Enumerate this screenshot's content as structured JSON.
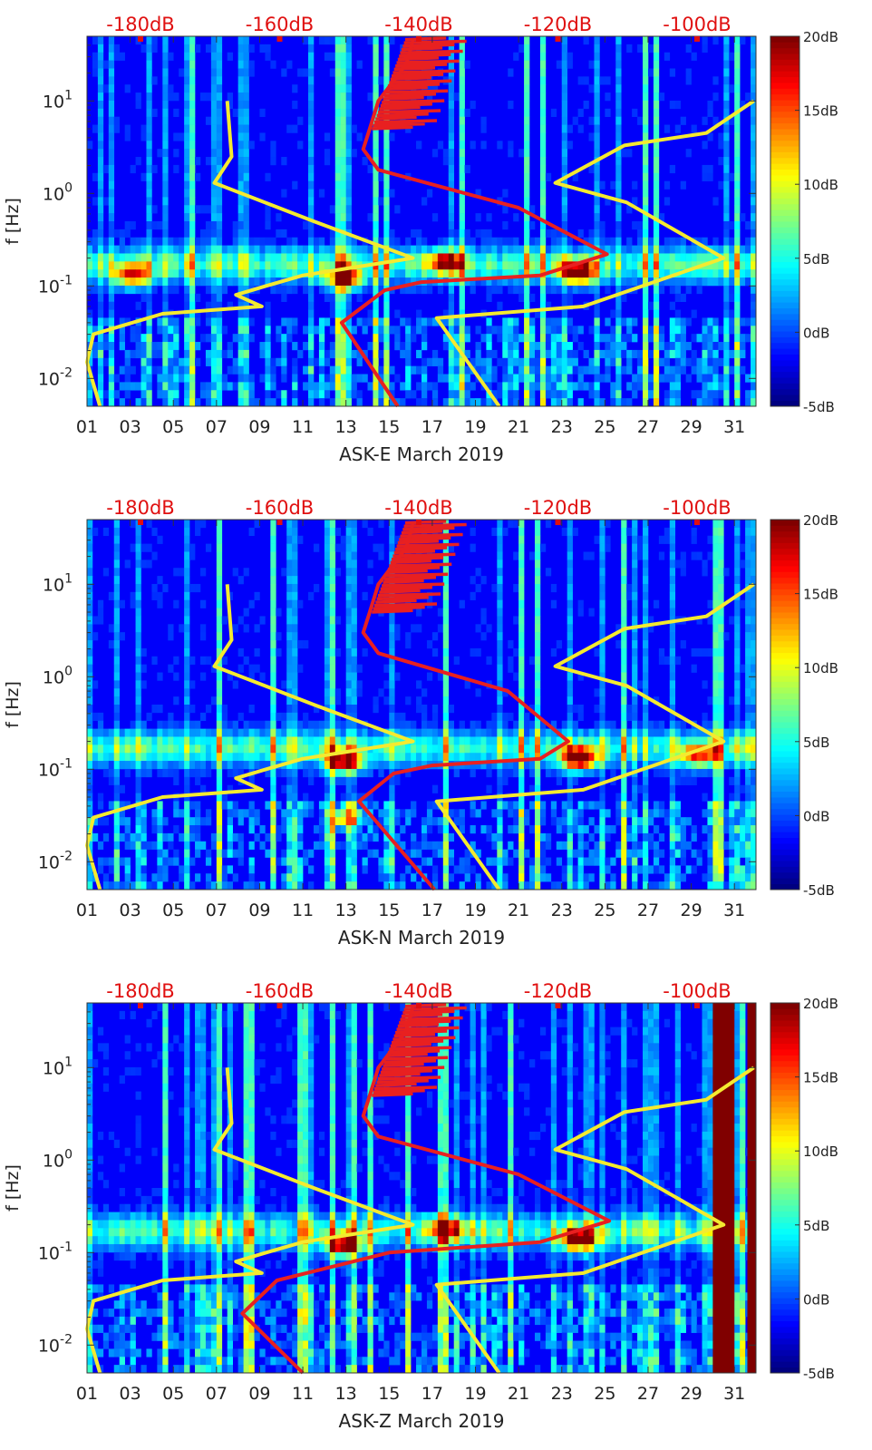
{
  "chart_data": [
    {
      "type": "heatmap",
      "title": "",
      "xlabel": "ASK-E March 2019",
      "ylabel": "f [Hz]",
      "x_ticks": [
        "01",
        "03",
        "05",
        "07",
        "09",
        "11",
        "13",
        "15",
        "17",
        "19",
        "21",
        "23",
        "25",
        "27",
        "29",
        "31"
      ],
      "y_ticks": [
        {
          "label": "10",
          "exp": "1"
        },
        {
          "label": "10",
          "exp": "0"
        },
        {
          "label": "10",
          "exp": "-1"
        },
        {
          "label": "10",
          "exp": "-2"
        }
      ],
      "top_ticks": [
        "-180dB",
        "-160dB",
        "-140dB",
        "-120dB",
        "-100dB"
      ],
      "colorbar_ticks": [
        "20dB",
        "15dB",
        "10dB",
        "5dB",
        "0dB",
        "-5dB"
      ],
      "xlim": [
        1,
        32
      ],
      "ylim_hz": [
        0.005,
        50
      ],
      "clim_db": [
        -5,
        20
      ],
      "grid": false,
      "hotspots": [
        {
          "day": 23.8,
          "f": 0.14,
          "level_db": 19
        },
        {
          "day": 12.9,
          "f": 0.12,
          "level_db": 17
        },
        {
          "day": 3.1,
          "f": 0.13,
          "level_db": 14
        },
        {
          "day": 17.6,
          "f": 0.18,
          "level_db": 15
        }
      ],
      "series": [
        {
          "name": "yellow model curve left",
          "color": "#f4ea30",
          "points": [
            [
              7.5,
              10
            ],
            [
              7.7,
              2.5
            ],
            [
              6.9,
              1.3
            ],
            [
              11.5,
              0.5
            ],
            [
              16.1,
              0.2
            ],
            [
              11.0,
              0.13
            ],
            [
              9.3,
              0.1
            ],
            [
              7.9,
              0.08
            ],
            [
              9.1,
              0.06
            ],
            [
              4.5,
              0.05
            ],
            [
              1.3,
              0.03
            ],
            [
              1.0,
              0.015
            ],
            [
              1.6,
              0.005
            ]
          ]
        },
        {
          "name": "yellow model curve right",
          "color": "#f4ea30",
          "points": [
            [
              20.1,
              0.005
            ],
            [
              17.2,
              0.045
            ],
            [
              24.0,
              0.06
            ],
            [
              30.5,
              0.2
            ],
            [
              26.0,
              0.8
            ],
            [
              22.7,
              1.3
            ],
            [
              25.9,
              3.3
            ],
            [
              29.7,
              4.5
            ],
            [
              31.9,
              10
            ]
          ]
        },
        {
          "name": "red noise-level curve",
          "color": "#e82020",
          "points": [
            [
              15.4,
              0.005
            ],
            [
              12.8,
              0.04
            ],
            [
              14.8,
              0.09
            ],
            [
              16.5,
              0.11
            ],
            [
              22.0,
              0.13
            ],
            [
              25.1,
              0.22
            ],
            [
              21.0,
              0.7
            ],
            [
              14.5,
              1.8
            ],
            [
              13.8,
              3.0
            ],
            [
              14.1,
              5
            ],
            [
              14.5,
              10
            ],
            [
              15.8,
              25
            ],
            [
              16.1,
              45
            ]
          ]
        }
      ]
    },
    {
      "type": "heatmap",
      "title": "",
      "xlabel": "ASK-N March 2019",
      "ylabel": "f [Hz]",
      "x_ticks": [
        "01",
        "03",
        "05",
        "07",
        "09",
        "11",
        "13",
        "15",
        "17",
        "19",
        "21",
        "23",
        "25",
        "27",
        "29",
        "31"
      ],
      "y_ticks": [
        {
          "label": "10",
          "exp": "1"
        },
        {
          "label": "10",
          "exp": "0"
        },
        {
          "label": "10",
          "exp": "-1"
        },
        {
          "label": "10",
          "exp": "-2"
        }
      ],
      "top_ticks": [
        "-180dB",
        "-160dB",
        "-140dB",
        "-120dB",
        "-100dB"
      ],
      "colorbar_ticks": [
        "20dB",
        "15dB",
        "10dB",
        "5dB",
        "0dB",
        "-5dB"
      ],
      "xlim": [
        1,
        32
      ],
      "ylim_hz": [
        0.005,
        50
      ],
      "clim_db": [
        -5,
        20
      ],
      "grid": false,
      "hotspots": [
        {
          "day": 23.8,
          "f": 0.13,
          "level_db": 19
        },
        {
          "day": 12.9,
          "f": 0.12,
          "level_db": 17
        },
        {
          "day": 13.0,
          "f": 0.03,
          "level_db": 12
        },
        {
          "day": 29.3,
          "f": 0.14,
          "level_db": 12
        }
      ],
      "series": [
        {
          "name": "yellow model curve left",
          "color": "#f4ea30",
          "points": [
            [
              7.5,
              10
            ],
            [
              7.7,
              2.5
            ],
            [
              6.9,
              1.3
            ],
            [
              11.5,
              0.5
            ],
            [
              16.1,
              0.2
            ],
            [
              11.0,
              0.13
            ],
            [
              9.3,
              0.1
            ],
            [
              7.9,
              0.08
            ],
            [
              9.1,
              0.06
            ],
            [
              4.5,
              0.05
            ],
            [
              1.3,
              0.03
            ],
            [
              1.0,
              0.015
            ],
            [
              1.6,
              0.005
            ]
          ]
        },
        {
          "name": "yellow model curve right",
          "color": "#f4ea30",
          "points": [
            [
              20.1,
              0.005
            ],
            [
              17.2,
              0.045
            ],
            [
              24.0,
              0.06
            ],
            [
              30.5,
              0.2
            ],
            [
              26.0,
              0.8
            ],
            [
              22.7,
              1.3
            ],
            [
              25.9,
              3.3
            ],
            [
              29.7,
              4.5
            ],
            [
              31.9,
              10
            ]
          ]
        },
        {
          "name": "red noise-level curve",
          "color": "#e82020",
          "points": [
            [
              17.1,
              0.005
            ],
            [
              13.6,
              0.045
            ],
            [
              15.2,
              0.09
            ],
            [
              17.0,
              0.11
            ],
            [
              22.0,
              0.13
            ],
            [
              23.3,
              0.2
            ],
            [
              20.5,
              0.7
            ],
            [
              14.5,
              1.8
            ],
            [
              13.8,
              3.0
            ],
            [
              14.1,
              5
            ],
            [
              14.5,
              10
            ],
            [
              15.8,
              25
            ],
            [
              16.1,
              45
            ]
          ]
        }
      ]
    },
    {
      "type": "heatmap",
      "title": "",
      "xlabel": "ASK-Z March 2019",
      "ylabel": "f [Hz]",
      "x_ticks": [
        "01",
        "03",
        "05",
        "07",
        "09",
        "11",
        "13",
        "15",
        "17",
        "19",
        "21",
        "23",
        "25",
        "27",
        "29",
        "31"
      ],
      "y_ticks": [
        {
          "label": "10",
          "exp": "1"
        },
        {
          "label": "10",
          "exp": "0"
        },
        {
          "label": "10",
          "exp": "-1"
        },
        {
          "label": "10",
          "exp": "-2"
        }
      ],
      "top_ticks": [
        "-180dB",
        "-160dB",
        "-140dB",
        "-120dB",
        "-100dB"
      ],
      "colorbar_ticks": [
        "20dB",
        "15dB",
        "10dB",
        "5dB",
        "0dB",
        "-5dB"
      ],
      "xlim": [
        1,
        32
      ],
      "ylim_hz": [
        0.005,
        50
      ],
      "clim_db": [
        -5,
        20
      ],
      "grid": false,
      "hotspots": [
        {
          "day": 23.8,
          "f": 0.14,
          "level_db": 19
        },
        {
          "day": 12.9,
          "f": 0.12,
          "level_db": 17
        },
        {
          "day": 17.6,
          "f": 0.18,
          "level_db": 15
        }
      ],
      "saturated_spans": [
        [
          30.0,
          31.0
        ],
        [
          31.6,
          32.0
        ]
      ],
      "series": [
        {
          "name": "yellow model curve left",
          "color": "#f4ea30",
          "points": [
            [
              7.5,
              10
            ],
            [
              7.7,
              2.5
            ],
            [
              6.9,
              1.3
            ],
            [
              11.5,
              0.5
            ],
            [
              16.1,
              0.2
            ],
            [
              11.0,
              0.13
            ],
            [
              9.3,
              0.1
            ],
            [
              7.9,
              0.08
            ],
            [
              9.1,
              0.06
            ],
            [
              4.5,
              0.05
            ],
            [
              1.3,
              0.03
            ],
            [
              1.0,
              0.015
            ],
            [
              1.6,
              0.005
            ]
          ]
        },
        {
          "name": "yellow model curve right",
          "color": "#f4ea30",
          "points": [
            [
              20.1,
              0.005
            ],
            [
              17.2,
              0.045
            ],
            [
              24.0,
              0.06
            ],
            [
              30.5,
              0.2
            ],
            [
              26.0,
              0.8
            ],
            [
              22.7,
              1.3
            ],
            [
              25.9,
              3.3
            ],
            [
              29.7,
              4.5
            ],
            [
              31.9,
              10
            ]
          ]
        },
        {
          "name": "red noise-level curve",
          "color": "#e82020",
          "points": [
            [
              11.0,
              0.005
            ],
            [
              8.2,
              0.022
            ],
            [
              9.8,
              0.05
            ],
            [
              15.0,
              0.1
            ],
            [
              22.0,
              0.13
            ],
            [
              25.2,
              0.22
            ],
            [
              21.0,
              0.7
            ],
            [
              14.5,
              1.8
            ],
            [
              13.8,
              3.0
            ],
            [
              14.1,
              5
            ],
            [
              14.5,
              10
            ],
            [
              15.8,
              25
            ],
            [
              16.1,
              45
            ]
          ]
        }
      ]
    }
  ]
}
